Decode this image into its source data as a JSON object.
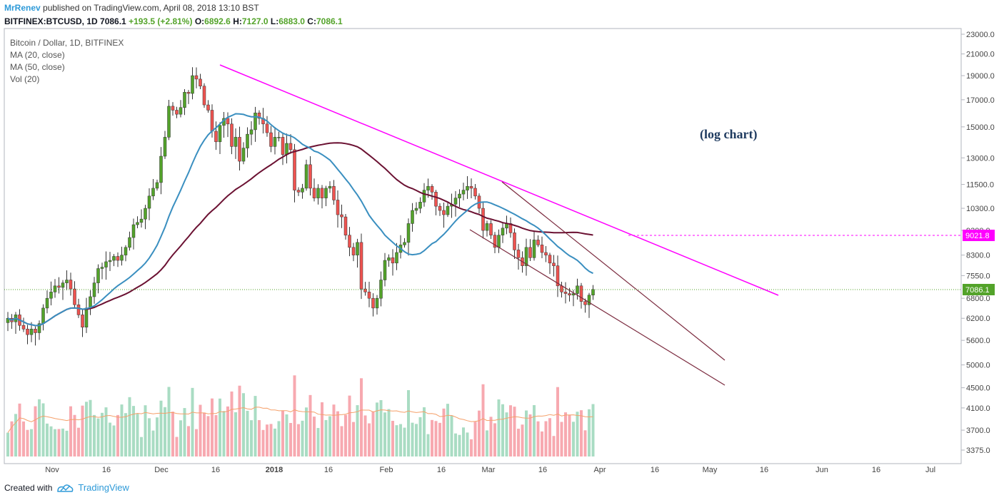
{
  "header": {
    "author": "MrRenev",
    "published": "published on TradingView.com, April 08, 2018 13:10 BST",
    "symbol": "BITFINEX:BTCUSD, 1D",
    "last": "7086.1",
    "change": "+193.5 (+2.81%)",
    "o_label": "O:",
    "o_value": "6892.6",
    "h_label": "H:",
    "h_value": "7127.0",
    "l_label": "L:",
    "l_value": "6883.0",
    "c_label": "C:",
    "c_value": "7086.1"
  },
  "legend": {
    "title": "Bitcoin / Dollar, 1D, BITFINEX",
    "ma20": "MA (20, close)",
    "ma50": "MA (50, close)",
    "vol": "Vol (20)"
  },
  "annotation": "(log chart)",
  "price_labels": {
    "resistance": "9021.8",
    "last": "7086.1"
  },
  "footer": {
    "created_with": "Created with",
    "brand": "TradingView"
  },
  "colors": {
    "up": "#53a32a",
    "down": "#ef5350",
    "ma20": "#3a8fc0",
    "ma50": "#6b1132",
    "trendline": "#ff00ff",
    "channel": "#7b2b3f",
    "vol_up": "#a9dcc3",
    "vol_down": "#f7a9b0",
    "vol_ma": "#f5a06a"
  },
  "chart_data": {
    "type": "candlestick",
    "scale": "log",
    "y_ticks": [
      "23000.0",
      "21000.0",
      "19000.0",
      "17000.0",
      "15000.0",
      "13000.0",
      "11500.0",
      "10300.0",
      "9300.0",
      "8300.0",
      "7550.0",
      "6800.0",
      "6200.0",
      "5600.0",
      "5000.0",
      "4500.0",
      "4100.0",
      "3700.0",
      "3375.0"
    ],
    "x_ticks": [
      "Nov",
      "16",
      "Dec",
      "16",
      "2018",
      "16",
      "Feb",
      "16",
      "Mar",
      "16",
      "Apr",
      "16",
      "May",
      "16",
      "Jun",
      "16",
      "Jul"
    ],
    "closes": [
      6200,
      6100,
      6300,
      6000,
      5900,
      5750,
      5900,
      5800,
      6050,
      6500,
      6800,
      7000,
      7200,
      7150,
      7300,
      7400,
      7100,
      6600,
      6300,
      5950,
      6500,
      6850,
      7300,
      7800,
      7850,
      8050,
      8100,
      8250,
      8100,
      8300,
      8600,
      9000,
      9550,
      9650,
      9800,
      10300,
      10900,
      11300,
      11600,
      13100,
      14300,
      16500,
      16200,
      15900,
      16400,
      17600,
      17500,
      19000,
      18700,
      18100,
      16600,
      16200,
      14700,
      14000,
      15100,
      15600,
      15200,
      13700,
      14300,
      12800,
      13600,
      14500,
      14800,
      16000,
      15600,
      15200,
      14600,
      13700,
      14300,
      14300,
      13200,
      13900,
      13500,
      11200,
      11100,
      11300,
      12600,
      11300,
      10800,
      11300,
      10800,
      11300,
      11400,
      10700,
      10000,
      9900,
      9100,
      8600,
      8300,
      8800,
      7100,
      7000,
      6800,
      6500,
      6800,
      7400,
      8100,
      8200,
      8000,
      8400,
      8700,
      8800,
      9600,
      10200,
      10300,
      10600,
      11200,
      11400,
      11100,
      10400,
      10200,
      10000,
      10400,
      10500,
      10800,
      11000,
      11200,
      11400,
      11300,
      10900,
      10300,
      9300,
      9600,
      9100,
      8600,
      9100,
      9400,
      9600,
      9200,
      8500,
      8200,
      7900,
      8600,
      8200,
      8900,
      8700,
      8400,
      8300,
      8000,
      7900,
      7200,
      7000,
      6950,
      6900,
      6950,
      7200,
      6700,
      6600,
      6900,
      7086
    ]
  }
}
